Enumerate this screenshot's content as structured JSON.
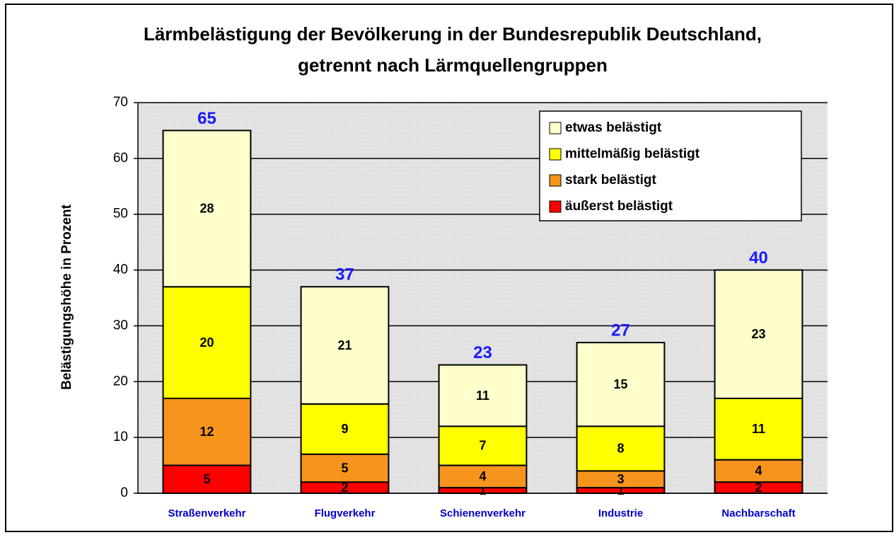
{
  "chart_data": {
    "type": "stacked-bar",
    "title": [
      "Lärmbelästigung der Bevölkerung in der Bundesrepublik Deutschland,",
      "getrennt nach Lärmquellengruppen"
    ],
    "y_label": "Belästigungshöhe in Prozent",
    "categories": [
      "Straßenverkehr",
      "Flugverkehr",
      "Schienenverkehr",
      "Industrie",
      "Nachbarschaft"
    ],
    "series": [
      {
        "name": "äußerst belästigt",
        "color": "#ff0000",
        "values": [
          5,
          2,
          1,
          1,
          2
        ]
      },
      {
        "name": "stark belästigt",
        "color": "#f7941d",
        "values": [
          12,
          5,
          4,
          3,
          4
        ]
      },
      {
        "name": "mittelmäßig belästigt",
        "color": "#ffff00",
        "values": [
          20,
          9,
          7,
          8,
          11
        ]
      },
      {
        "name": "etwas belästigt",
        "color": "#ffffcc",
        "values": [
          28,
          21,
          11,
          15,
          23
        ]
      }
    ],
    "totals": [
      65,
      37,
      23,
      27,
      40
    ],
    "ylim": [
      0,
      70
    ],
    "yticks": [
      0,
      10,
      20,
      30,
      40,
      50,
      60,
      70
    ],
    "grid": true,
    "legend": "top-right"
  }
}
